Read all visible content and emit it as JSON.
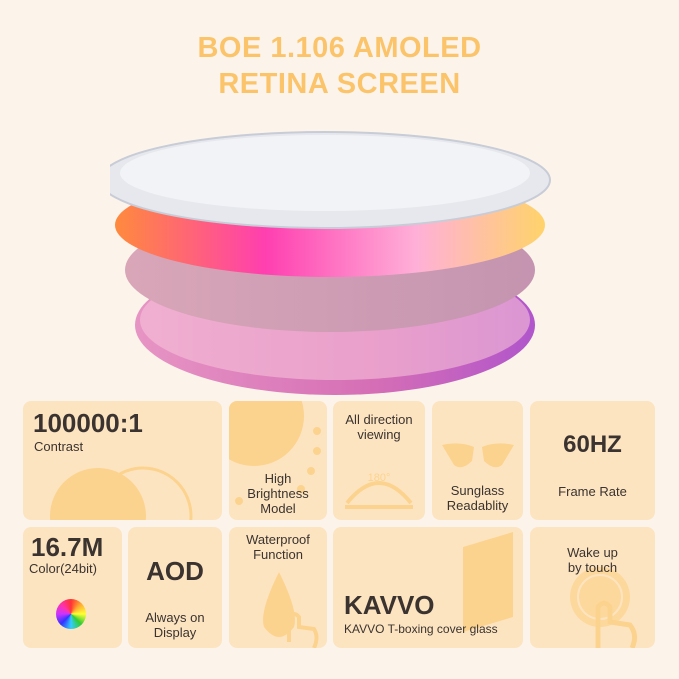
{
  "title": {
    "line1": "BOE 1.106 AMOLED",
    "line2": "RETINA SCREEN"
  },
  "colors": {
    "title": "#fbc46a",
    "card": "#fde4c0",
    "motif": "#fcd38e",
    "background": "#fcf4ea"
  },
  "features": {
    "contrast": {
      "value": "100000:1",
      "label": "Contrast"
    },
    "brightness": {
      "l1": "High",
      "l2": "Brightness",
      "l3": "Model"
    },
    "viewing": {
      "l1": "All direction",
      "l2": "viewing",
      "angle": "180°"
    },
    "sunglass": {
      "l1": "Sunglass",
      "l2": "Readablity"
    },
    "frame": {
      "value": "60HZ",
      "label": "Frame Rate"
    },
    "color": {
      "value": "16.7M",
      "label": "Color(24bit)"
    },
    "aod": {
      "value": "AOD",
      "l1": "Always on",
      "l2": "Display"
    },
    "waterproof": {
      "l1": "Waterproof",
      "l2": "Function"
    },
    "glass": {
      "value": "KAVVO",
      "label": "KAVVO T-boxing cover glass"
    },
    "wake": {
      "l1": "Wake up",
      "l2": "by touch"
    }
  }
}
